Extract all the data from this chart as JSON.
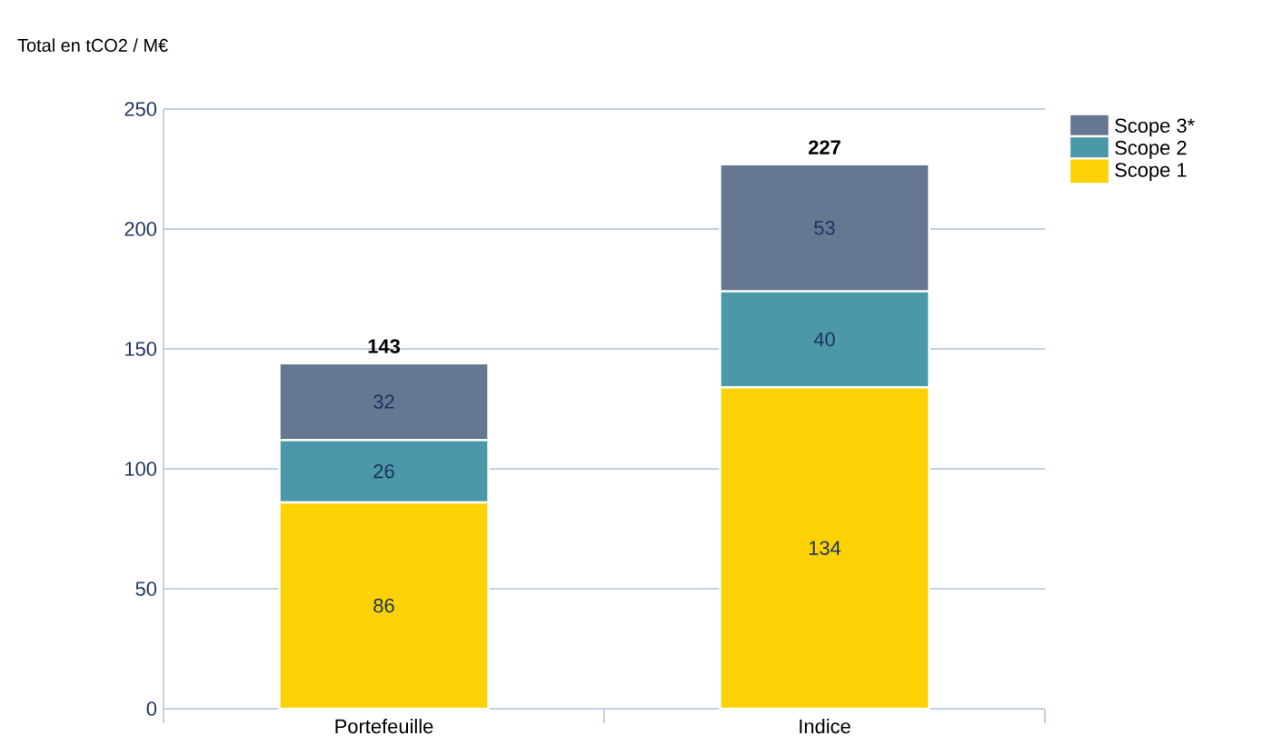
{
  "chart_data": {
    "type": "bar",
    "ylabel": "Total en tCO2 / M€",
    "categories": [
      "Portefeuille",
      "Indice"
    ],
    "series": [
      {
        "name": "Scope 1",
        "color": "#fcd205",
        "values": [
          86,
          134
        ]
      },
      {
        "name": "Scope 2",
        "color": "#4b98a9",
        "values": [
          26,
          40
        ]
      },
      {
        "name": "Scope 3*",
        "color": "#667792",
        "values": [
          32,
          53
        ]
      }
    ],
    "stacked": true,
    "data_labels": true,
    "totals": [
      "143",
      "227"
    ],
    "ylim": [
      0,
      250
    ],
    "yticks": [
      0,
      50,
      100,
      150,
      200,
      250
    ],
    "grid": "y",
    "legend": "top right"
  }
}
